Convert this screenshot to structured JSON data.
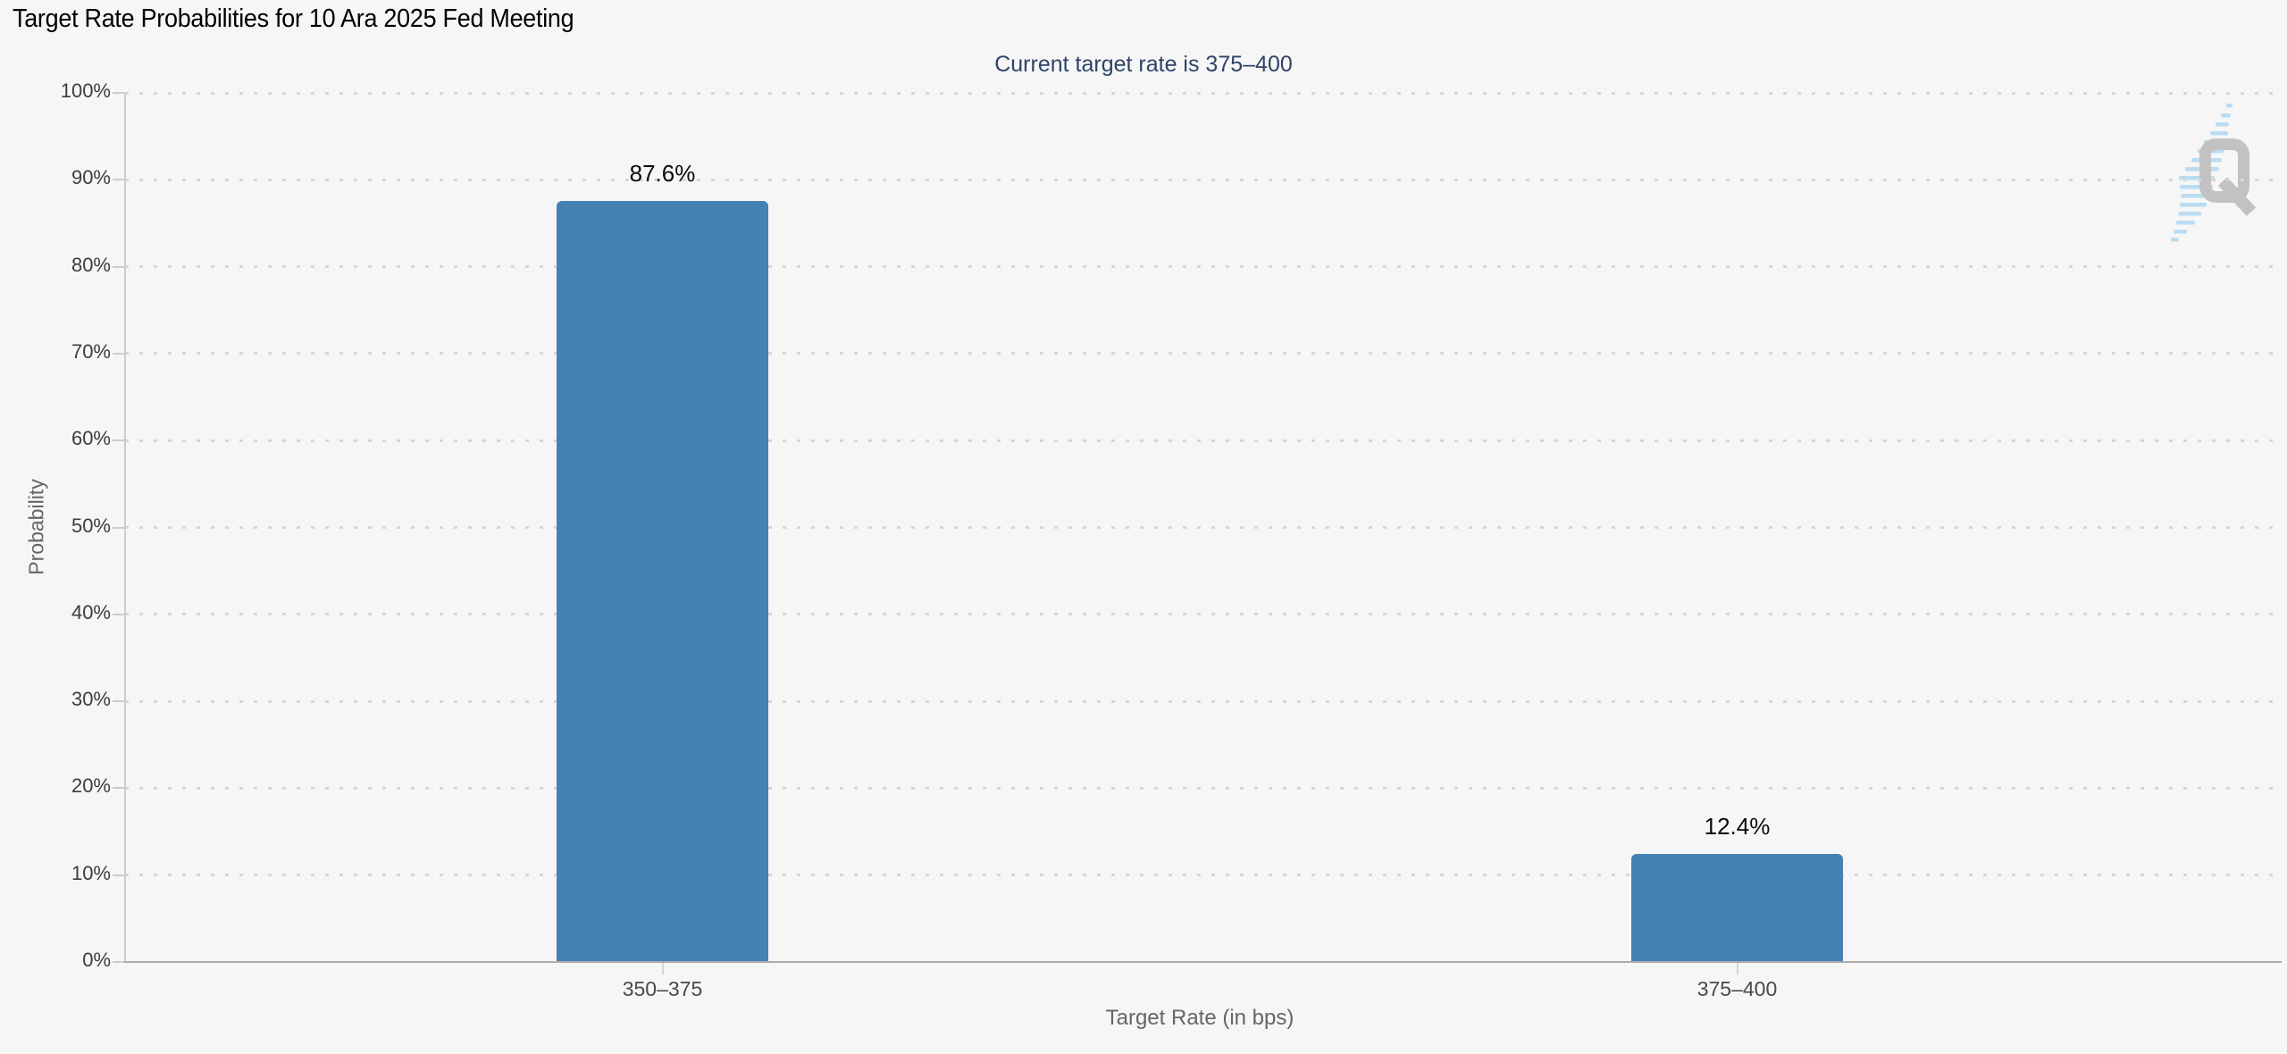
{
  "page": {
    "title": "Target Rate Probabilities for 10 Ara 2025 Fed Meeting",
    "subtitle": "Current target rate is 375–400"
  },
  "chart_data": {
    "type": "bar",
    "title": "Target Rate Probabilities for 10 Ara 2025 Fed Meeting",
    "subtitle": "Current target rate is 375–400",
    "categories": [
      "350–375",
      "375–400"
    ],
    "values": [
      87.6,
      12.4
    ],
    "data_labels": [
      "87.6%",
      "12.4%"
    ],
    "xlabel": "Target Rate (in bps)",
    "ylabel": "Probability",
    "ylim": [
      0,
      100
    ],
    "yticks": [
      0,
      10,
      20,
      30,
      40,
      50,
      60,
      70,
      80,
      90,
      100
    ],
    "ytick_labels": [
      "0%",
      "10%",
      "20%",
      "30%",
      "40%",
      "50%",
      "60%",
      "70%",
      "80%",
      "90%",
      "100%"
    ],
    "grid": "horizontal-dotted",
    "legend": "none",
    "bar_color": "#4681B4"
  },
  "watermark": {
    "letter": "Q"
  },
  "colors": {
    "background": "#F6F6F6",
    "bar": "#4681B4",
    "title": "#000000",
    "subtitle": "#2E4369",
    "tick_label": "#3D3D3D",
    "axis_title": "#666666",
    "grid_dot": "#D7D7D7",
    "axis_line": "#CCCCCC",
    "baseline": "#ACACAC",
    "menu_icon": "#6B6B6B",
    "watermark_q": "#C2C2C2",
    "watermark_swoosh": "#B9DCF2"
  }
}
